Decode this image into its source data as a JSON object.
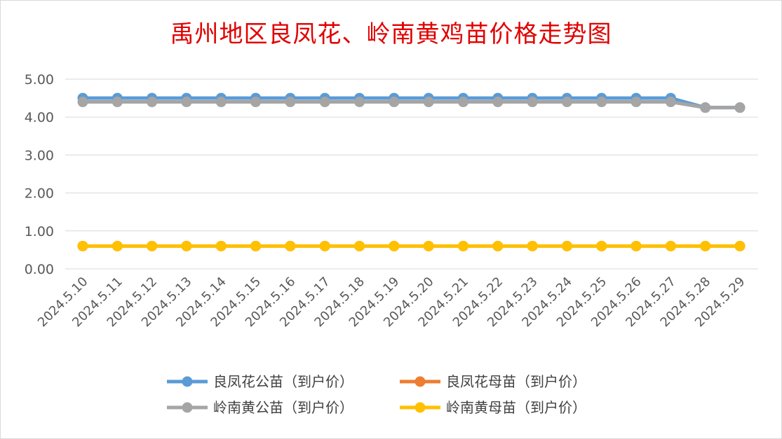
{
  "chart_data": {
    "type": "line",
    "title": "禹州地区良凤花、岭南黄鸡苗价格走势图",
    "xlabel": "",
    "ylabel": "",
    "ylim": [
      0,
      5
    ],
    "yticks": [
      "0.00",
      "1.00",
      "2.00",
      "3.00",
      "4.00",
      "5.00"
    ],
    "grid": true,
    "legend_position": "bottom",
    "categories": [
      "2024.5.10",
      "2024.5.11",
      "2024.5.12",
      "2024.5.13",
      "2024.5.14",
      "2024.5.15",
      "2024.5.16",
      "2024.5.17",
      "2024.5.18",
      "2024.5.19",
      "2024.5.20",
      "2024.5.21",
      "2024.5.22",
      "2024.5.23",
      "2024.5.24",
      "2024.5.25",
      "2024.5.26",
      "2024.5.27",
      "2024.5.28",
      "2024.5.29"
    ],
    "series": [
      {
        "name": "良凤花公苗（到户价）",
        "color": "#5b9bd5",
        "values": [
          4.5,
          4.5,
          4.5,
          4.5,
          4.5,
          4.5,
          4.5,
          4.5,
          4.5,
          4.5,
          4.5,
          4.5,
          4.5,
          4.5,
          4.5,
          4.5,
          4.5,
          4.5,
          4.25,
          4.25
        ]
      },
      {
        "name": "良凤花母苗（到户价）",
        "color": "#ed7d31",
        "values": [
          0.6,
          0.6,
          0.6,
          0.6,
          0.6,
          0.6,
          0.6,
          0.6,
          0.6,
          0.6,
          0.6,
          0.6,
          0.6,
          0.6,
          0.6,
          0.6,
          0.6,
          0.6,
          0.6,
          0.6
        ]
      },
      {
        "name": "岭南黄公苗（到户价）",
        "color": "#a5a5a5",
        "values": [
          4.4,
          4.4,
          4.4,
          4.4,
          4.4,
          4.4,
          4.4,
          4.4,
          4.4,
          4.4,
          4.4,
          4.4,
          4.4,
          4.4,
          4.4,
          4.4,
          4.4,
          4.4,
          4.25,
          4.25
        ]
      },
      {
        "name": "岭南黄母苗（到户价）",
        "color": "#ffc000",
        "values": [
          0.6,
          0.6,
          0.6,
          0.6,
          0.6,
          0.6,
          0.6,
          0.6,
          0.6,
          0.6,
          0.6,
          0.6,
          0.6,
          0.6,
          0.6,
          0.6,
          0.6,
          0.6,
          0.6,
          0.6
        ]
      }
    ]
  }
}
